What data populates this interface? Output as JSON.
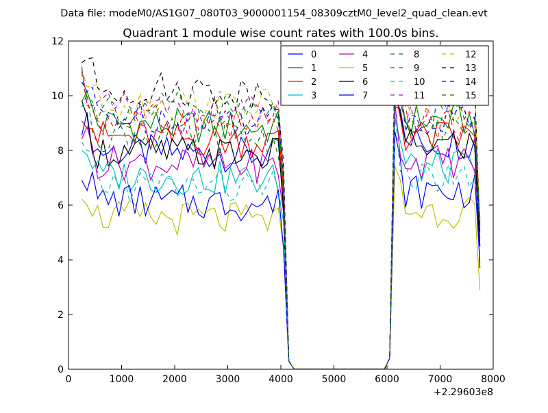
{
  "header": {
    "file_line": "Data file: modeM0/AS1G07_080T03_9000001154_08309cztM0_level2_quad_clean.evt"
  },
  "chart_data": {
    "type": "line",
    "title": "Quadrant 1 module wise count rates with 100.0s bins.",
    "xlabel": "",
    "ylabel": "",
    "x_offset_label": "+2.29603e8",
    "xlim": [
      0,
      8000
    ],
    "ylim": [
      0,
      12
    ],
    "x_ticks": [
      0,
      1000,
      2000,
      3000,
      4000,
      5000,
      6000,
      7000,
      8000
    ],
    "y_ticks": [
      0,
      2,
      4,
      6,
      8,
      10,
      12
    ],
    "grid": false,
    "legend_position": "top-right",
    "segments": [
      {
        "x_start": 250,
        "x_end": 4150,
        "step": 100
      },
      {
        "x_start": 4250,
        "x_end": 5950,
        "step": 1700
      },
      {
        "x_start": 6050,
        "x_end": 7750,
        "step": 100
      }
    ],
    "series": [
      {
        "name": "0",
        "color": "#0000ff",
        "dash": "solid",
        "seg1_base": 8.0,
        "seg3_base": 8.3,
        "end": 3.7
      },
      {
        "name": "1",
        "color": "#008000",
        "dash": "solid",
        "seg1_base": 9.0,
        "seg3_base": 9.1,
        "end": 5.5
      },
      {
        "name": "2",
        "color": "#ff0000",
        "dash": "solid",
        "seg1_base": 8.5,
        "seg3_base": 8.5,
        "end": 4.5
      },
      {
        "name": "3",
        "color": "#00bfbf",
        "dash": "solid",
        "seg1_base": 7.1,
        "seg3_base": 7.4,
        "end": 5.3
      },
      {
        "name": "4",
        "color": "#bf00bf",
        "dash": "solid",
        "seg1_base": 7.6,
        "seg3_base": 7.6,
        "end": 4.8
      },
      {
        "name": "5",
        "color": "#bfbf00",
        "dash": "solid",
        "seg1_base": 5.6,
        "seg3_base": 5.8,
        "end": 2.9
      },
      {
        "name": "6",
        "color": "#000000",
        "dash": "solid",
        "seg1_base": 8.0,
        "seg3_base": 8.2,
        "end": 4.5
      },
      {
        "name": "7",
        "color": "#0000ff",
        "dash": "solid",
        "seg1_base": 6.2,
        "seg3_base": 6.5,
        "end": 3.9
      },
      {
        "name": "8",
        "color": "#008000",
        "dash": "dashed",
        "seg1_base": 8.6,
        "seg3_base": 8.7,
        "end": 5.0
      },
      {
        "name": "9",
        "color": "#ff0000",
        "dash": "dashed",
        "seg1_base": 9.1,
        "seg3_base": 9.0,
        "end": 5.2
      },
      {
        "name": "10",
        "color": "#00bfbf",
        "dash": "dashed",
        "seg1_base": 6.8,
        "seg3_base": 7.0,
        "end": 5.6
      },
      {
        "name": "11",
        "color": "#bf00bf",
        "dash": "dashed",
        "seg1_base": 9.5,
        "seg3_base": 9.3,
        "end": 5.3
      },
      {
        "name": "12",
        "color": "#bfbf00",
        "dash": "dashed",
        "seg1_base": 9.8,
        "seg3_base": 9.6,
        "end": 5.5
      },
      {
        "name": "13",
        "color": "#000000",
        "dash": "dashed",
        "seg1_base": 10.3,
        "seg3_base": 10.0,
        "end": 5.0
      },
      {
        "name": "14",
        "color": "#0000ff",
        "dash": "dashed",
        "seg1_base": 9.3,
        "seg3_base": 9.2,
        "end": 5.1
      },
      {
        "name": "15",
        "color": "#008000",
        "dash": "dashed",
        "seg1_base": 9.6,
        "seg3_base": 9.4,
        "end": 5.4
      }
    ]
  }
}
